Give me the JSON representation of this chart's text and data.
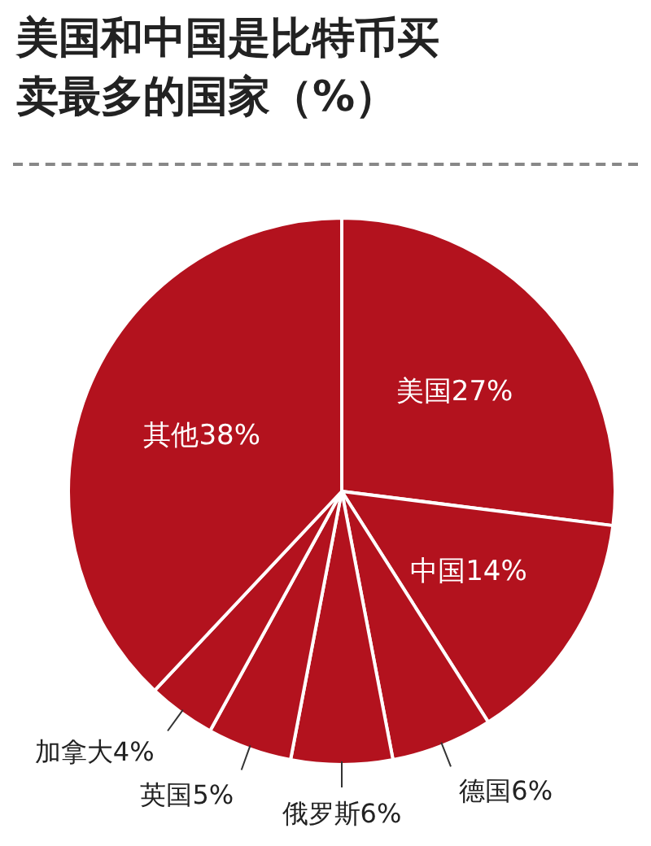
{
  "chart_data": {
    "type": "pie",
    "title": "美国和中国是比特币买卖最多的国家（%）",
    "categories": [
      "美国",
      "中国",
      "德国",
      "俄罗斯",
      "英国",
      "加拿大",
      "其他"
    ],
    "values": [
      27,
      14,
      6,
      6,
      5,
      4,
      38
    ],
    "value_labels": [
      "27%",
      "14%",
      "6%",
      "6%",
      "5%",
      "4%",
      "38%"
    ],
    "colors": [
      "#b3121e",
      "#b3121e",
      "#b3121e",
      "#b3121e",
      "#b3121e",
      "#b3121e",
      "#b3121e"
    ],
    "legend": false
  }
}
